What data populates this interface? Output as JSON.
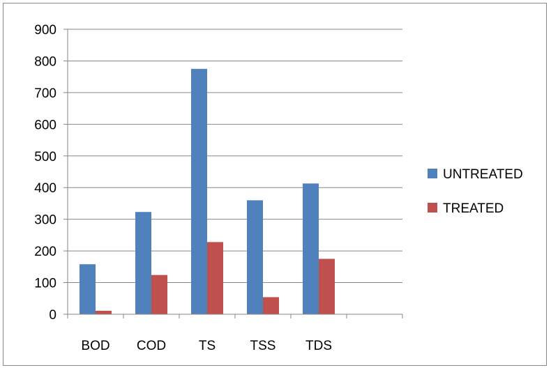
{
  "chart_data": {
    "type": "bar",
    "categories": [
      "BOD",
      "COD",
      "TS",
      "TSS",
      "TDS",
      ""
    ],
    "series": [
      {
        "name": "UNTREATED",
        "color": "#4F81BD",
        "values": [
          158,
          323,
          775,
          360,
          413,
          null
        ]
      },
      {
        "name": "TREATED",
        "color": "#C0504D",
        "values": [
          11,
          124,
          228,
          54,
          175,
          null
        ]
      }
    ],
    "ylim": [
      0,
      900
    ],
    "yticks": [
      "0",
      "100",
      "200",
      "300",
      "400",
      "500",
      "600",
      "700",
      "800",
      "900"
    ],
    "grid": true,
    "legend_position": "right"
  }
}
